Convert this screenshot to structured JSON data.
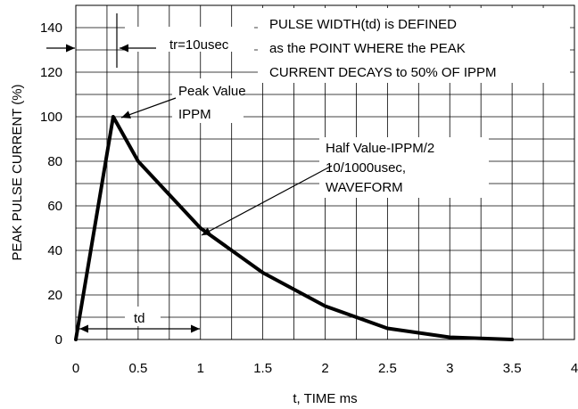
{
  "chart_data": {
    "type": "line",
    "title": "",
    "xlabel": "t, TIME ms",
    "ylabel": "PEAK PULSE CURRENT (%)",
    "xlim": [
      0,
      4
    ],
    "ylim": [
      0,
      150
    ],
    "x_ticks": [
      "0",
      "0.5",
      "1",
      "1.5",
      "2",
      "2.5",
      "3",
      "3.5",
      "4"
    ],
    "x_tick_values": [
      0,
      0.5,
      1,
      1.5,
      2,
      2.5,
      3,
      3.5,
      4
    ],
    "y_ticks": [
      "0",
      "20",
      "40",
      "60",
      "80",
      "100",
      "120",
      "140"
    ],
    "y_tick_values": [
      0,
      20,
      40,
      60,
      80,
      100,
      120,
      140
    ],
    "grid": true,
    "series": [
      {
        "x": [
          0,
          0.3,
          0.5,
          1.0,
          1.5,
          2.0,
          2.5,
          3.0,
          3.5
        ],
        "values": [
          0,
          100,
          80,
          50,
          30,
          15,
          5,
          1,
          0
        ]
      }
    ],
    "annotations": {
      "pulse_width_note": [
        "PULSE WIDTH(td) is DEFINED",
        "as the POINT WHERE the PEAK",
        "CURRENT DECAYS to 50% OF IPPM"
      ],
      "rise_time": "tr=10usec",
      "peak_value": [
        "Peak Value",
        "IPPM"
      ],
      "half_value": [
        "Half Value-IPPM/2",
        "10/1000usec,",
        "WAVEFORM"
      ],
      "td": "td"
    },
    "colors": {
      "line": "#000000",
      "grid": "#000000",
      "background": "#ffffff"
    }
  }
}
